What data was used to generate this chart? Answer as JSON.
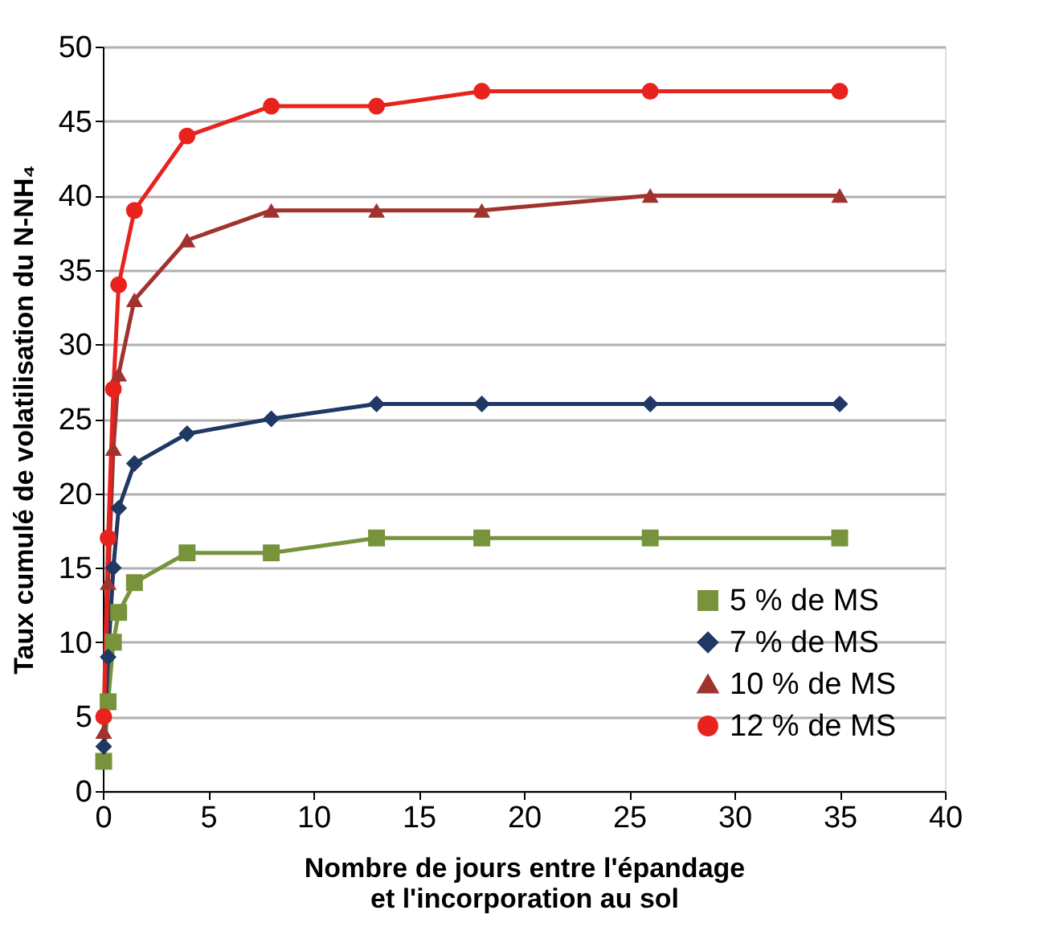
{
  "chart_data": {
    "type": "line",
    "xlabel": "Nombre de jours entre l'épandage\net l'incorporation au sol",
    "ylabel": "Taux cumulé de volatilisation du N-NH₄",
    "x": [
      0.04,
      0.25,
      0.5,
      0.75,
      1.5,
      4,
      8,
      13,
      18,
      26,
      35
    ],
    "series": [
      {
        "name": "5 % de MS",
        "color": "#77933c",
        "marker": "square",
        "values": [
          2,
          6,
          10,
          12,
          14,
          16,
          16,
          17,
          17,
          17,
          17
        ]
      },
      {
        "name": "7 % de MS",
        "color": "#1f3864",
        "marker": "diamond",
        "values": [
          3,
          9,
          15,
          19,
          22,
          24,
          25,
          26,
          26,
          26,
          26
        ]
      },
      {
        "name": "10 % de MS",
        "color": "#a0332e",
        "marker": "triangle",
        "values": [
          4,
          14,
          23,
          28,
          33,
          37,
          39,
          39,
          39,
          40,
          40
        ]
      },
      {
        "name": "12 % de MS",
        "color": "#e8231e",
        "marker": "circle",
        "values": [
          5,
          17,
          27,
          34,
          39,
          44,
          46,
          46,
          47,
          47,
          47
        ]
      }
    ],
    "xlim": [
      0,
      40
    ],
    "xticks": [
      0,
      5,
      10,
      15,
      20,
      25,
      30,
      35,
      40
    ],
    "ylim": [
      0,
      50
    ],
    "yticks": [
      0,
      5,
      10,
      15,
      20,
      25,
      30,
      35,
      40,
      45,
      50
    ],
    "grid": "y",
    "legend": "bottom right",
    "line_style": "solid"
  }
}
